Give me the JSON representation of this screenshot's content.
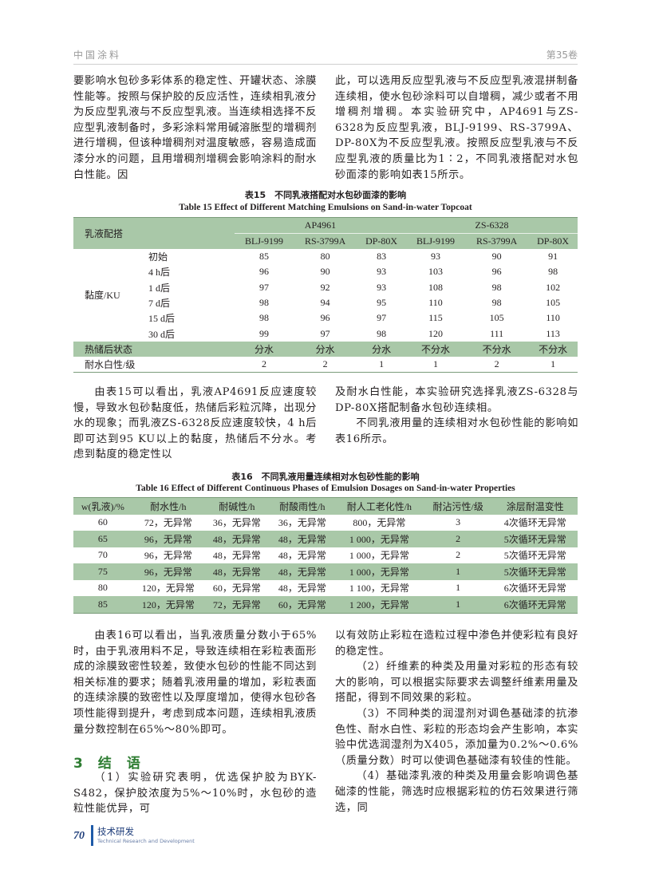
{
  "header": {
    "journal": "中国涂料",
    "volume": "第35卷"
  },
  "para1": {
    "left": "要影响水包砂多彩体系的稳定性、开罐状态、涂膜性能等。按照与保护胶的反应活性，连续相乳液分为反应型乳液与不反应型乳液。当连续相选择不反应型乳液制备时，多彩涂料常用碱溶胀型的增稠剂进行增稠，但该种增稠剂对温度敏感，容易造成面漆分水的问题，且用增稠剂增稠会影响涂料的耐水白性能。因",
    "right": "此，可以选用反应型乳液与不反应型乳液混拼制备连续相，使水包砂涂料可以自增稠，减少或者不用增稠剂增稠。本实验研究中，AP4691与ZS-6328为反应型乳液，BLJ-9199、RS-3799A、DP-80X为不反应型乳液。按照反应型乳液与不反应型乳液的质量比为1∶2，不同乳液搭配对水包砂面漆的影响如表15所示。"
  },
  "table15": {
    "caption_cn": "表15　不同乳液搭配对水包砂面漆的影响",
    "caption_en": "Table 15   Effect of Different Matching Emulsions on Sand-in-water Topcoat",
    "corner": "乳液配搭",
    "groups": [
      "AP4961",
      "ZS-6328"
    ],
    "columns": [
      "BLJ-9199",
      "RS-3799A",
      "DP-80X",
      "BLJ-9199",
      "RS-3799A",
      "DP-80X"
    ],
    "viscosity_label": "黏度/KU",
    "viscosity_rows": [
      {
        "time": "初始",
        "values": [
          "85",
          "80",
          "83",
          "93",
          "90",
          "91"
        ]
      },
      {
        "time": "4 h后",
        "values": [
          "96",
          "90",
          "93",
          "103",
          "96",
          "98"
        ]
      },
      {
        "time": "1 d后",
        "values": [
          "97",
          "92",
          "93",
          "108",
          "98",
          "102"
        ]
      },
      {
        "time": "7 d后",
        "values": [
          "98",
          "94",
          "95",
          "110",
          "98",
          "105"
        ]
      },
      {
        "time": "15 d后",
        "values": [
          "98",
          "96",
          "97",
          "115",
          "105",
          "110"
        ]
      },
      {
        "time": "30 d后",
        "values": [
          "99",
          "97",
          "98",
          "120",
          "111",
          "113"
        ]
      }
    ],
    "storage_row": {
      "label": "热储后状态",
      "values": [
        "分水",
        "分水",
        "分水",
        "不分水",
        "不分水",
        "不分水"
      ]
    },
    "whitening_row": {
      "label": "耐水白性/级",
      "values": [
        "2",
        "2",
        "1",
        "1",
        "2",
        "1"
      ]
    }
  },
  "para2": {
    "left": "由表15可以看出，乳液AP4691反应速度较慢，导致水包砂黏度低，热储后彩粒沉降，出现分水的现象；而乳液ZS-6328反应速度较快，4 h后即可达到95 KU以上的黏度，热储后不分水。考虑到黏度的稳定性以",
    "right_a": "及耐水白性能，本实验研究选择乳液ZS-6328与DP-80X搭配制备水包砂连续相。",
    "right_b": "不同乳液用量的连续相对水包砂性能的影响如表16所示。"
  },
  "table16": {
    "caption_cn": "表16　不同乳液用量连续相对水包砂性能的影响",
    "caption_en": "Table 16   Effect of Different Continuous Phases of Emulsion Dosages on Sand-in-water Properties",
    "headers": [
      "w(乳液)/%",
      "耐水性/h",
      "耐碱性/h",
      "耐酸雨性/h",
      "耐人工老化性/h",
      "耐沾污性/级",
      "涂层耐温变性"
    ],
    "rows": [
      [
        "60",
        "72，无异常",
        "36，无异常",
        "36，无异常",
        "800，无异常",
        "3",
        "4次循环无异常"
      ],
      [
        "65",
        "96，无异常",
        "48，无异常",
        "48，无异常",
        "1 000，无异常",
        "2",
        "5次循环无异常"
      ],
      [
        "70",
        "96，无异常",
        "48，无异常",
        "48，无异常",
        "1 000，无异常",
        "2",
        "5次循环无异常"
      ],
      [
        "75",
        "96，无异常",
        "48，无异常",
        "48，无异常",
        "1 000，无异常",
        "1",
        "5次循环无异常"
      ],
      [
        "80",
        "120，无异常",
        "60，无异常",
        "48，无异常",
        "1 100，无异常",
        "1",
        "6次循环无异常"
      ],
      [
        "85",
        "120，无异常",
        "72，无异常",
        "60，无异常",
        "1 200，无异常",
        "1",
        "6次循环无异常"
      ]
    ]
  },
  "para3": {
    "left": "由表16可以看出，当乳液质量分数小于65%时，由于乳液用料不足，导致连续相在彩粒表面形成的涂膜致密性较差，致使水包砂的性能不同达到相关标准的要求；随着乳液用量的增加，彩粒表面的连续涂膜的致密性以及厚度增加，使得水包砂各项性能得到提升，考虑到成本问题，连续相乳液质量分数控制在65%～80%即可。",
    "section_heading": "3　结　语",
    "concl1": "（1）实验研究表明，优选保护胶为BYK-S482，保护胶浓度为5%～10%时，水包砂的造粒性能优异，可",
    "right_a": "以有效防止彩粒在造粒过程中渗色并使彩粒有良好的稳定性。",
    "concl2": "（2）纤维素的种类及用量对彩粒的形态有较大的影响，可以根据实际要求去调整纤维素用量及搭配，得到不同效果的彩粒。",
    "concl3": "（3）不同种类的润湿剂对调色基础漆的抗渗色性、耐水白性、彩粒的形态均会产生影响，本实验中优选润湿剂为X405，添加量为0.2%～0.6%（质量分数）时可以使调色基础漆有较佳的性能。",
    "concl4": "（4）基础漆乳液的种类及用量会影响调色基础漆的性能，筛选时应根据彩粒的仿石效果进行筛选，同"
  },
  "footer": {
    "page": "70",
    "section_cn": "技术研发",
    "section_en": "Technical Research and Development"
  },
  "colors": {
    "table_green": "#a9c8a8",
    "heading_green": "#2e7d32",
    "footer_blue": "#1e3d7a"
  }
}
